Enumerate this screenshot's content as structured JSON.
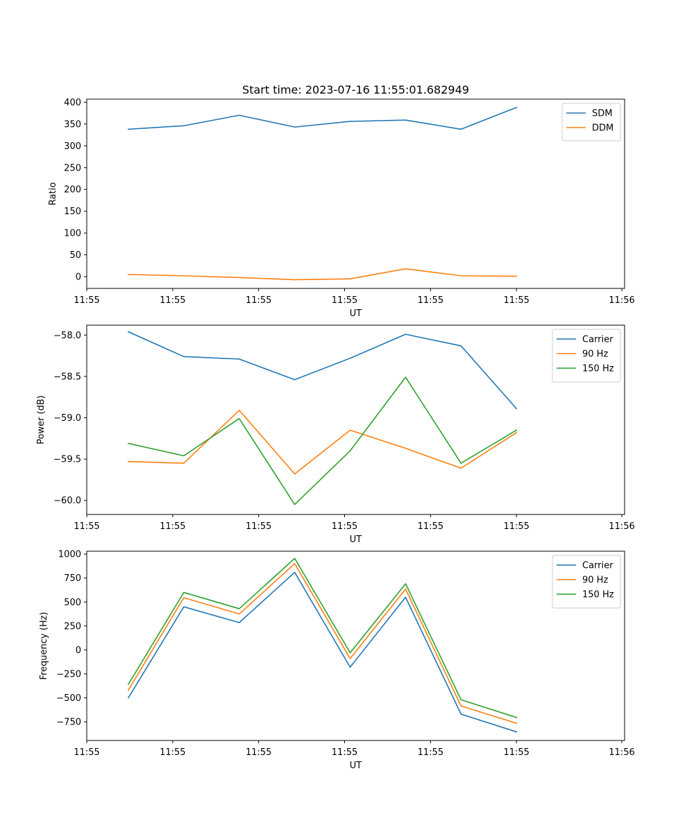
{
  "chart_data": [
    {
      "type": "line",
      "title": "Start time: 2023-07-16 11:55:01.682949",
      "xlabel": "UT",
      "ylabel": "Ratio",
      "legend_position": "top-right",
      "grid": false,
      "xlim": [
        -0.75,
        8.95
      ],
      "ylim": [
        -27,
        407
      ],
      "x": [
        0,
        1,
        2,
        3,
        4,
        5,
        6,
        7
      ],
      "x_ticks": [
        -0.75,
        0.8,
        2.35,
        3.9,
        5.45,
        7.0,
        8.9
      ],
      "x_tick_labels": [
        "11:55",
        "11:55",
        "11:55",
        "11:55",
        "11:55",
        "11:55",
        "11:56"
      ],
      "y_ticks": [
        0,
        50,
        100,
        150,
        200,
        250,
        300,
        350,
        400
      ],
      "y_tick_labels": [
        "0",
        "50",
        "100",
        "150",
        "200",
        "250",
        "300",
        "350",
        "400"
      ],
      "series": [
        {
          "name": "SDM",
          "color": "#1f77b4",
          "values": [
            338,
            346,
            370,
            343,
            356,
            359,
            338,
            388
          ]
        },
        {
          "name": "DDM",
          "color": "#ff7f0e",
          "values": [
            5,
            2,
            -2,
            -7,
            -5,
            18,
            2,
            1
          ]
        }
      ]
    },
    {
      "type": "line",
      "title": "",
      "xlabel": "UT",
      "ylabel": "Power (dB)",
      "legend_position": "top-right",
      "grid": false,
      "xlim": [
        -0.75,
        8.95
      ],
      "ylim": [
        -60.17,
        -57.88
      ],
      "x": [
        0,
        1,
        2,
        3,
        4,
        5,
        6,
        7
      ],
      "x_ticks": [
        -0.75,
        0.8,
        2.35,
        3.9,
        5.45,
        7.0,
        8.9
      ],
      "x_tick_labels": [
        "11:55",
        "11:55",
        "11:55",
        "11:55",
        "11:55",
        "11:55",
        "11:56"
      ],
      "y_ticks": [
        -58.0,
        -58.5,
        -59.0,
        -59.5,
        -60.0
      ],
      "y_tick_labels": [
        "−58.0",
        "−58.5",
        "−59.0",
        "−59.5",
        "−60.0"
      ],
      "series": [
        {
          "name": "Carrier",
          "color": "#1f77b4",
          "values": [
            -57.96,
            -58.26,
            -58.29,
            -58.54,
            -58.28,
            -57.99,
            -58.13,
            -58.89
          ]
        },
        {
          "name": "90 Hz",
          "color": "#ff7f0e",
          "values": [
            -59.53,
            -59.55,
            -58.91,
            -59.68,
            -59.15,
            -59.37,
            -59.61,
            -59.18
          ]
        },
        {
          "name": "150 Hz",
          "color": "#2ca02c",
          "values": [
            -59.31,
            -59.46,
            -59.01,
            -60.05,
            -59.4,
            -58.51,
            -59.55,
            -59.15
          ]
        }
      ]
    },
    {
      "type": "line",
      "title": "",
      "xlabel": "UT",
      "ylabel": "Frequency (Hz)",
      "legend_position": "top-right",
      "grid": false,
      "xlim": [
        -0.75,
        8.95
      ],
      "ylim": [
        -945,
        1030
      ],
      "x": [
        0,
        1,
        2,
        3,
        4,
        5,
        6,
        7
      ],
      "x_ticks": [
        -0.75,
        0.8,
        2.35,
        3.9,
        5.45,
        7.0,
        8.9
      ],
      "x_tick_labels": [
        "11:55",
        "11:55",
        "11:55",
        "11:55",
        "11:55",
        "11:55",
        "11:56"
      ],
      "y_ticks": [
        1000,
        750,
        500,
        250,
        0,
        -250,
        -500,
        -750
      ],
      "y_tick_labels": [
        "1000",
        "750",
        "500",
        "250",
        "0",
        "−250",
        "−500",
        "−750"
      ],
      "series": [
        {
          "name": "Carrier",
          "color": "#1f77b4",
          "values": [
            -500,
            450,
            285,
            810,
            -180,
            550,
            -670,
            -855
          ]
        },
        {
          "name": "90 Hz",
          "color": "#ff7f0e",
          "values": [
            -420,
            545,
            375,
            900,
            -90,
            635,
            -585,
            -765
          ]
        },
        {
          "name": "150 Hz",
          "color": "#2ca02c",
          "values": [
            -360,
            600,
            430,
            955,
            -30,
            690,
            -520,
            -705
          ]
        }
      ]
    }
  ]
}
